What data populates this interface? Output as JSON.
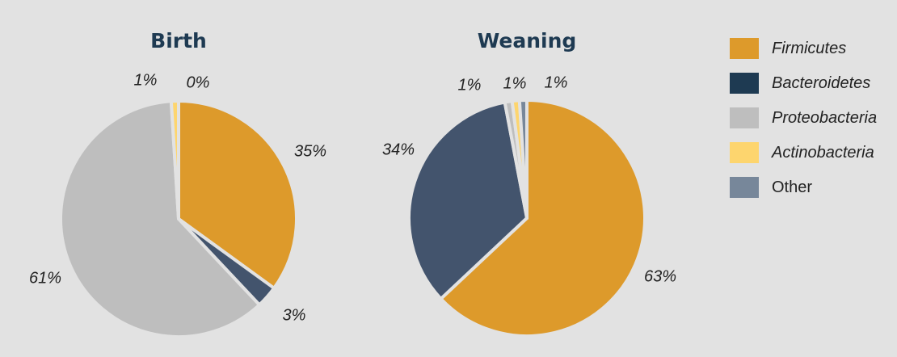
{
  "chart_data": {
    "type": "pie",
    "categories": [
      "Firmicutes",
      "Bacteroidetes",
      "Proteobacteria",
      "Actinobacteria",
      "Other"
    ],
    "colors": {
      "Firmicutes": "#dd9a2b",
      "Bacteroidetes": "#43546d",
      "Proteobacteria": "#bebebe",
      "Actinobacteria": "#fdd56e",
      "Other": "#77879a"
    },
    "legend": {
      "position": "right"
    },
    "pies": [
      {
        "title": "Birth",
        "slices": [
          {
            "category": "Firmicutes",
            "value": 35,
            "label": "35%"
          },
          {
            "category": "Bacteroidetes",
            "value": 3,
            "label": "3%"
          },
          {
            "category": "Proteobacteria",
            "value": 61,
            "label": "61%"
          },
          {
            "category": "Actinobacteria",
            "value": 1,
            "label": "1%"
          },
          {
            "category": "Other",
            "value": 0,
            "label": "0%"
          }
        ]
      },
      {
        "title": "Weaning",
        "slices": [
          {
            "category": "Firmicutes",
            "value": 63,
            "label": "63%"
          },
          {
            "category": "Bacteroidetes",
            "value": 34,
            "label": "34%"
          },
          {
            "category": "Proteobacteria",
            "value": 1,
            "label": "1%"
          },
          {
            "category": "Actinobacteria",
            "value": 1,
            "label": "1%"
          },
          {
            "category": "Other",
            "value": 1,
            "label": "1%"
          }
        ]
      }
    ]
  },
  "legend_items": [
    {
      "label": "Firmicutes",
      "color": "#dd9a2b",
      "italic": true
    },
    {
      "label": "Bacteroidetes",
      "color": "#1e3a52",
      "italic": true
    },
    {
      "label": "Proteobacteria",
      "color": "#bebebe",
      "italic": true
    },
    {
      "label": "Actinobacteria",
      "color": "#fdd56e",
      "italic": true
    },
    {
      "label": "Other",
      "color": "#77879a",
      "italic": false
    }
  ]
}
